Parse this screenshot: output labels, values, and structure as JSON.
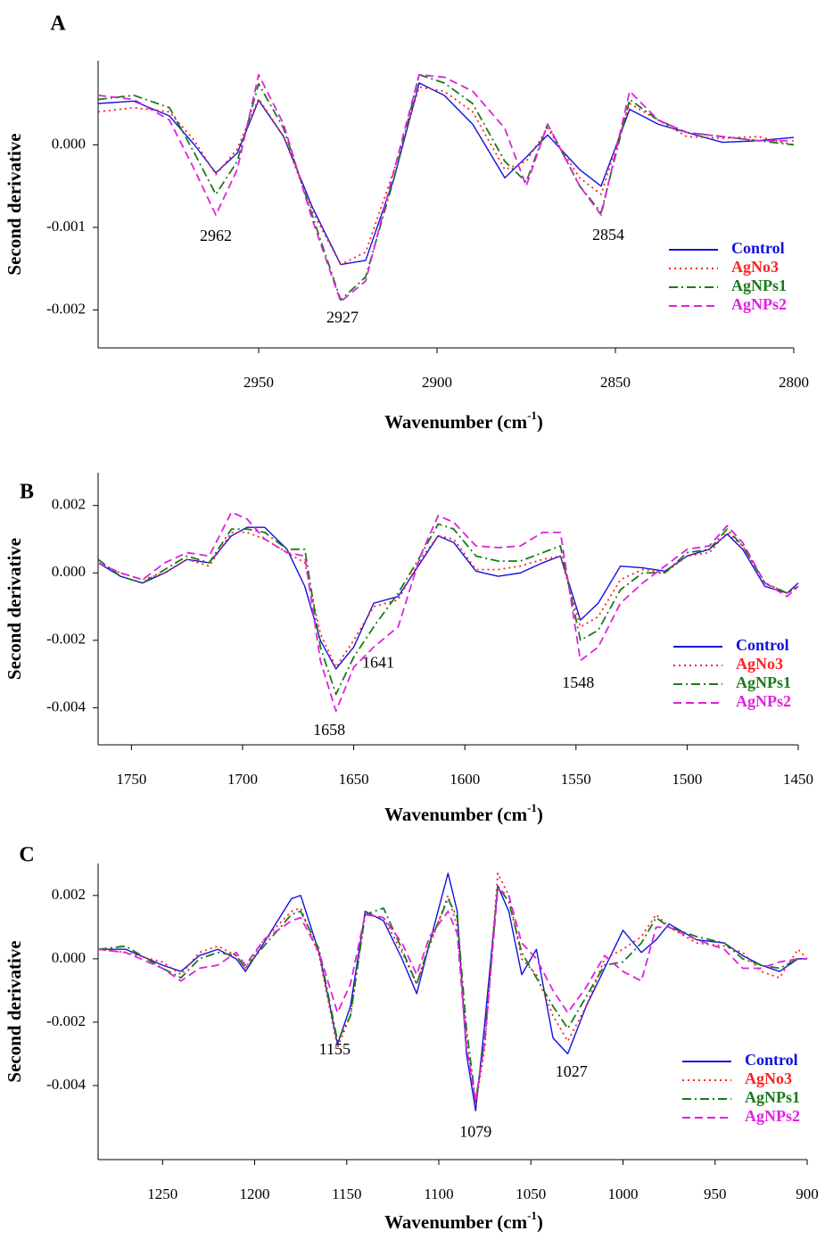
{
  "chart_data": [
    {
      "type": "line",
      "panel_label": "A",
      "ylabel": "Second derivative",
      "xlabel": "Wavenumber (cm",
      "xlabel_superscript": "-1",
      "xlabel_suffix": ")",
      "xlim": [
        2995,
        2800
      ],
      "ylim": [
        -0.00246,
        0.00102
      ],
      "xticks": [
        2950,
        2900,
        2850,
        2800
      ],
      "yticks": [
        {
          "value": 0,
          "label": "0.000"
        },
        {
          "value": -0.001,
          "label": "-0.001"
        },
        {
          "value": -0.002,
          "label": "-0.002"
        }
      ],
      "legend": "lower right",
      "x": [
        2995,
        2985,
        2975,
        2968,
        2962,
        2956,
        2950,
        2943,
        2935,
        2927,
        2920,
        2912,
        2905,
        2898,
        2890,
        2881,
        2875,
        2869,
        2860,
        2854,
        2846,
        2838,
        2830,
        2820,
        2810,
        2800
      ],
      "series": [
        {
          "name": "Control",
          "color": "#1010e0",
          "line_style": "solid",
          "values": [
            0.0005,
            0.00053,
            0.00035,
            0,
            -0.00034,
            -0.0001,
            0.00054,
            0.0001,
            -0.00075,
            -0.00145,
            -0.0014,
            -0.0004,
            0.00075,
            0.0006,
            0.00025,
            -0.0004,
            -0.00015,
            0.00012,
            -0.0003,
            -0.0005,
            0.00043,
            0.00025,
            0.00015,
            3e-05,
            5e-05,
            9e-05
          ]
        },
        {
          "name": "AgNo3",
          "color": "#ff2020",
          "line_style": "dotted",
          "values": [
            0.0004,
            0.00045,
            0.0004,
            5e-05,
            -0.00036,
            -5e-05,
            0.00056,
            0.0001,
            -0.0008,
            -0.00145,
            -0.0013,
            -0.0003,
            0.0007,
            0.00065,
            0.0004,
            -0.0003,
            -0.0002,
            0.0002,
            -0.0004,
            -0.0006,
            0.0005,
            0.0003,
            0.0001,
            8e-05,
            0.0001,
            0
          ]
        },
        {
          "name": "AgNPs1",
          "color": "#1a7a1a",
          "line_style": "dashdot",
          "values": [
            0.00055,
            0.0006,
            0.00045,
            -0.0001,
            -0.0006,
            -0.0002,
            0.00074,
            0.0002,
            -0.00085,
            -0.00188,
            -0.0016,
            -0.0004,
            0.00085,
            0.00075,
            0.0005,
            -0.0002,
            -0.00045,
            0.00025,
            -0.0005,
            -0.00082,
            0.00055,
            0.0003,
            0.00015,
            0.0001,
            5e-05,
            0
          ]
        },
        {
          "name": "AgNPs2",
          "color": "#e020e0",
          "line_style": "dashed",
          "values": [
            0.0006,
            0.00055,
            0.0003,
            -0.0003,
            -0.00085,
            -0.0003,
            0.00085,
            0.00025,
            -0.0009,
            -0.0019,
            -0.00165,
            -0.0003,
            0.00085,
            0.00082,
            0.00065,
            0.0002,
            -0.0005,
            0.00025,
            -0.0005,
            -0.00085,
            0.00065,
            0.0003,
            0.00015,
            0.0001,
            5e-05,
            5e-05
          ]
        }
      ],
      "annotations": [
        {
          "text": "2962",
          "x": 2962,
          "y": -0.00112
        },
        {
          "text": "2927",
          "x": 2926.5,
          "y": -0.00211
        },
        {
          "text": "2854",
          "x": 2852,
          "y": -0.00111
        }
      ]
    },
    {
      "type": "line",
      "panel_label": "B",
      "ylabel": "Second derivative",
      "xlabel": "Wavenumber (cm",
      "xlabel_superscript": "-1",
      "xlabel_suffix": ")",
      "xlim": [
        1765,
        1450
      ],
      "ylim": [
        -0.0051,
        0.00297
      ],
      "xticks": [
        1750,
        1700,
        1650,
        1600,
        1550,
        1500,
        1450
      ],
      "yticks": [
        {
          "value": 0.002,
          "label": "0.002"
        },
        {
          "value": 0,
          "label": "0.000"
        },
        {
          "value": -0.002,
          "label": "-0.002"
        },
        {
          "value": -0.004,
          "label": "-0.004"
        }
      ],
      "legend": "lower right",
      "x": [
        1765,
        1755,
        1745,
        1735,
        1725,
        1715,
        1705,
        1698,
        1690,
        1680,
        1672,
        1665,
        1658,
        1650,
        1641,
        1630,
        1620,
        1612,
        1605,
        1595,
        1585,
        1575,
        1565,
        1557,
        1548,
        1540,
        1530,
        1520,
        1510,
        1500,
        1490,
        1482,
        1475,
        1465,
        1455,
        1450
      ],
      "series": [
        {
          "name": "Control",
          "color": "#1010e0",
          "line_style": "solid",
          "values": [
            0.0003,
            -0.0001,
            -0.0003,
            0,
            0.0004,
            0.0003,
            0.0011,
            0.00135,
            0.00135,
            0.0007,
            -0.0004,
            -0.002,
            -0.00285,
            -0.0022,
            -0.0009,
            -0.0007,
            0.0003,
            0.0011,
            0.0009,
            5e-05,
            -0.0001,
            0,
            0.0003,
            0.0005,
            -0.0014,
            -0.0009,
            0.0002,
            0.00015,
            5e-05,
            0.0005,
            0.0007,
            0.00115,
            0.0007,
            -0.0004,
            -0.0006,
            -0.0003
          ]
        },
        {
          "name": "AgNo3",
          "color": "#ff2020",
          "line_style": "dotted",
          "values": [
            0.0003,
            0,
            -0.0002,
            0,
            0.0004,
            0.0002,
            0.0012,
            0.0012,
            0.001,
            0.0006,
            0.0003,
            -0.0018,
            -0.0028,
            -0.002,
            -0.001,
            -0.0008,
            0.0004,
            0.0011,
            0.001,
            0.0001,
            0.0001,
            0.0002,
            0.0004,
            0.0005,
            -0.0016,
            -0.0013,
            -0.0002,
            0.0001,
            0,
            0.0005,
            0.0006,
            0.0012,
            0.0008,
            -0.0003,
            -0.0006,
            -0.0004
          ]
        },
        {
          "name": "AgNPs1",
          "color": "#1a7a1a",
          "line_style": "dashdot",
          "values": [
            0.0004,
            -0.0001,
            -0.0003,
            0.0001,
            0.0005,
            0.0003,
            0.0013,
            0.0013,
            0.0012,
            0.0007,
            0.0007,
            -0.0022,
            -0.0036,
            -0.0025,
            -0.0016,
            -0.0006,
            0.0005,
            0.00145,
            0.0013,
            0.0005,
            0.00035,
            0.00035,
            0.0006,
            0.0008,
            -0.002,
            -0.0017,
            -0.0005,
            0,
            0,
            0.0006,
            0.0007,
            0.0013,
            0.0008,
            -0.0003,
            -0.0006,
            -0.0004
          ]
        },
        {
          "name": "AgNPs2",
          "color": "#e020e0",
          "line_style": "dashed",
          "values": [
            0.0003,
            0,
            -0.0002,
            0.0003,
            0.0006,
            0.0005,
            0.0018,
            0.0016,
            0.001,
            0.0006,
            0.0005,
            -0.0026,
            -0.0041,
            -0.0028,
            -0.0022,
            -0.0016,
            0.0005,
            0.0017,
            0.0015,
            0.0008,
            0.00075,
            0.0008,
            0.0012,
            0.0012,
            -0.0026,
            -0.0022,
            -0.0009,
            -0.0003,
            0.0002,
            0.0007,
            0.0008,
            0.0014,
            0.0009,
            -0.0003,
            -0.0007,
            -0.0004
          ]
        }
      ],
      "annotations": [
        {
          "text": "1641",
          "x": 1639,
          "y": -0.0027
        },
        {
          "text": "1658",
          "x": 1661,
          "y": -0.0047
        },
        {
          "text": "1548",
          "x": 1549,
          "y": -0.0033
        }
      ]
    },
    {
      "type": "line",
      "panel_label": "C",
      "ylabel": "Second derivative",
      "xlabel": "Wavenumber (cm",
      "xlabel_superscript": "-1",
      "xlabel_suffix": ")",
      "xlim": [
        1285,
        900
      ],
      "ylim": [
        -0.00634,
        0.00301
      ],
      "xticks": [
        1250,
        1200,
        1150,
        1100,
        1050,
        1000,
        950,
        900
      ],
      "yticks": [
        {
          "value": 0.002,
          "label": "0.002"
        },
        {
          "value": 0,
          "label": "0.000"
        },
        {
          "value": -0.002,
          "label": "-0.002"
        },
        {
          "value": -0.004,
          "label": "-0.004"
        }
      ],
      "legend": "lower right",
      "x": [
        1285,
        1270,
        1250,
        1240,
        1230,
        1220,
        1210,
        1205,
        1195,
        1180,
        1175,
        1165,
        1155,
        1148,
        1140,
        1130,
        1120,
        1112,
        1105,
        1095,
        1090,
        1085,
        1080,
        1075,
        1068,
        1062,
        1055,
        1047,
        1038,
        1030,
        1020,
        1010,
        1000,
        990,
        982,
        975,
        960,
        945,
        935,
        925,
        915,
        905,
        900
      ],
      "series": [
        {
          "name": "Control",
          "color": "#1010e0",
          "line_style": "solid",
          "values": [
            0.0003,
            0.0003,
            -0.0002,
            -0.0004,
            0.0001,
            0.0003,
            0,
            -0.0004,
            0.0005,
            0.0019,
            0.002,
            0.0002,
            -0.0027,
            -0.0015,
            0.0015,
            0.0012,
            0,
            -0.0011,
            0.0005,
            0.0027,
            0.0015,
            -0.003,
            -0.0048,
            -0.002,
            0.0023,
            0.0015,
            -0.0005,
            0.0003,
            -0.0025,
            -0.003,
            -0.0015,
            -0.0003,
            0.0009,
            0.0002,
            0.0006,
            0.0011,
            0.0006,
            0.0005,
            0.0001,
            -0.0002,
            -0.0004,
            0,
            0
          ]
        },
        {
          "name": "AgNo3",
          "color": "#ff2020",
          "line_style": "dotted",
          "values": [
            0.0003,
            0.0002,
            -0.0001,
            -0.0005,
            0.0002,
            0.0004,
            0.0001,
            -0.0003,
            0.0006,
            0.0015,
            0.0016,
            0.0001,
            -0.0028,
            -0.0018,
            0.0014,
            0.0013,
            0.0002,
            -0.0008,
            0.0004,
            0.002,
            0.001,
            -0.0025,
            -0.0046,
            -0.0028,
            0.0027,
            0.002,
            0,
            -0.0005,
            -0.0018,
            -0.0026,
            -0.0015,
            0,
            0.0003,
            0.0007,
            0.0014,
            0.001,
            0.0005,
            0.0004,
            0.0002,
            -0.0004,
            -0.0006,
            0.0003,
            0
          ]
        },
        {
          "name": "AgNPs1",
          "color": "#1a7a1a",
          "line_style": "dashdot",
          "values": [
            0.0003,
            0.0004,
            -0.0003,
            -0.0006,
            0,
            0.0002,
            0.0001,
            -0.0003,
            0.0004,
            0.0014,
            0.0015,
            0.0003,
            -0.0026,
            -0.0018,
            0.0014,
            0.0016,
            0.0003,
            -0.0008,
            0.0005,
            0.0019,
            0.0013,
            -0.0022,
            -0.0045,
            -0.0025,
            0.0023,
            0.0018,
            0.0002,
            -0.0006,
            -0.0015,
            -0.0022,
            -0.0012,
            -0.0002,
            -0.0001,
            0.0005,
            0.0013,
            0.001,
            0.0007,
            0.0005,
            0,
            -0.0002,
            -0.0003,
            0,
            0
          ]
        },
        {
          "name": "AgNPs2",
          "color": "#e020e0",
          "line_style": "dashed",
          "values": [
            0.0003,
            0.0002,
            -0.0003,
            -0.0007,
            -0.0003,
            -0.0002,
            0.0002,
            -0.0002,
            0.0006,
            0.0012,
            0.0013,
            0.0002,
            -0.0017,
            -0.0008,
            0.0014,
            0.0013,
            0.0005,
            -0.0005,
            0.0007,
            0.0015,
            0.0008,
            -0.0028,
            -0.0045,
            -0.0026,
            0.0022,
            0.002,
            0.0005,
            0,
            -0.001,
            -0.0017,
            -0.0009,
            0.0001,
            -0.0004,
            -0.0007,
            0.001,
            0.001,
            0.0006,
            0.0003,
            -0.0003,
            -0.0003,
            -0.0001,
            0,
            0
          ]
        }
      ],
      "annotations": [
        {
          "text": "1155",
          "x": 1156.5,
          "y": -0.0029
        },
        {
          "text": "1079",
          "x": 1080,
          "y": -0.0055
        },
        {
          "text": "1027",
          "x": 1028,
          "y": -0.0036
        }
      ]
    }
  ]
}
